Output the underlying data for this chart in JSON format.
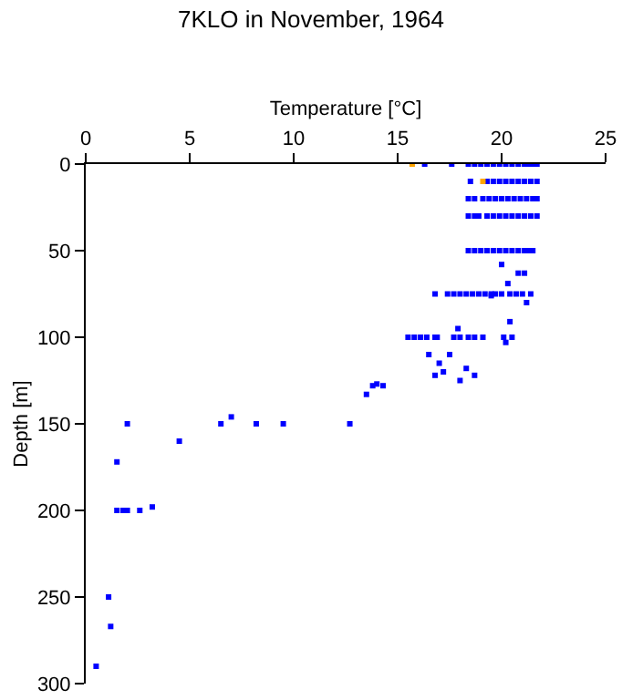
{
  "chart_data": {
    "type": "scatter",
    "title": "7KLO in November, 1964",
    "xlabel": "Temperature [°C]",
    "ylabel": "Depth [m]",
    "xlim": [
      0,
      25
    ],
    "xticks": [
      0,
      5,
      10,
      15,
      20,
      25
    ],
    "ylim": [
      300,
      0
    ],
    "yticks": [
      0,
      50,
      100,
      150,
      200,
      250,
      300
    ],
    "grid": false,
    "marker": "square",
    "series": [
      {
        "color": "#0000ff",
        "x": [
          16.3,
          17.6,
          18.4,
          18.7,
          19.0,
          19.3,
          19.6,
          19.9,
          20.2,
          20.5,
          20.8,
          21.1,
          21.3,
          21.5,
          21.7,
          18.5,
          19.3,
          19.6,
          19.9,
          20.2,
          20.5,
          20.8,
          21.1,
          21.4,
          21.7,
          18.4,
          18.7,
          19.1,
          19.4,
          19.7,
          20.0,
          20.3,
          20.6,
          20.9,
          21.2,
          21.5,
          21.7,
          18.4,
          18.7,
          18.9,
          19.3,
          19.6,
          19.9,
          20.2,
          20.5,
          20.8,
          21.1,
          21.4,
          21.7,
          18.4,
          18.7,
          19.0,
          19.3,
          19.6,
          19.9,
          20.2,
          20.5,
          20.8,
          21.1,
          21.3,
          21.5,
          20.0,
          20.8,
          21.1,
          20.3,
          16.8,
          17.4,
          17.7,
          18.0,
          18.3,
          18.6,
          18.9,
          19.2,
          19.5,
          19.7,
          20.0,
          20.4,
          20.7,
          21.0,
          21.4,
          19.5,
          21.2,
          20.4,
          17.9,
          15.5,
          15.8,
          16.1,
          16.4,
          16.8,
          16.9,
          17.7,
          18.0,
          18.4,
          18.7,
          19.1,
          20.1,
          20.5,
          20.2,
          16.5,
          17.5,
          17.0,
          17.2,
          16.8,
          18.3,
          18.7,
          18.0,
          13.8,
          14.0,
          14.3,
          13.5,
          2.0,
          6.5,
          7.0,
          8.2,
          9.5,
          12.7,
          4.5,
          1.5,
          1.5,
          1.8,
          2.0,
          2.6,
          3.2,
          1.1,
          1.2,
          0.5
        ],
        "values": [
          0,
          0,
          0,
          0,
          0,
          0,
          0,
          0,
          0,
          0,
          0,
          0,
          0,
          0,
          0,
          10,
          10,
          10,
          10,
          10,
          10,
          10,
          10,
          10,
          10,
          20,
          20,
          20,
          20,
          20,
          20,
          20,
          20,
          20,
          20,
          20,
          20,
          30,
          30,
          30,
          30,
          30,
          30,
          30,
          30,
          30,
          30,
          30,
          30,
          50,
          50,
          50,
          50,
          50,
          50,
          50,
          50,
          50,
          50,
          50,
          50,
          58,
          63,
          63,
          69,
          75,
          75,
          75,
          75,
          75,
          75,
          75,
          75,
          75,
          75,
          75,
          75,
          75,
          75,
          75,
          76,
          80,
          91,
          95,
          100,
          100,
          100,
          100,
          100,
          100,
          100,
          100,
          100,
          100,
          100,
          100,
          100,
          103,
          110,
          110,
          115,
          120,
          122,
          118,
          122,
          125,
          128,
          127,
          128,
          133,
          150,
          150,
          146,
          150,
          150,
          150,
          160,
          172,
          200,
          200,
          200,
          200,
          198,
          250,
          267,
          290
        ]
      },
      {
        "color": "#ffa500",
        "x": [
          15.7,
          19.1
        ],
        "values": [
          0,
          10
        ]
      }
    ]
  }
}
